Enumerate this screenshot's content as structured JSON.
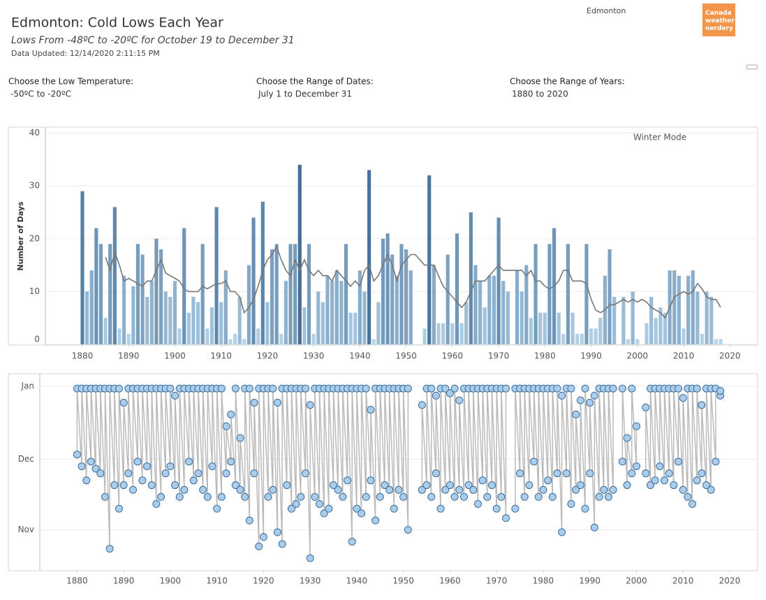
{
  "header": {
    "title": "Edmonton: Cold Lows Each Year",
    "subtitle": "Lows From -48ºC to -20ºC for October 19 to December 31",
    "updated": "Data Updated: 12/14/2020 2:11:15 PM",
    "location": "Edmonton",
    "logo": "Canada weather nerdery"
  },
  "filters": [
    {
      "label": "Choose the Low Temperature:",
      "value": "-50ºC to -20ºC"
    },
    {
      "label": "Choose the Range of Dates:",
      "value": "July 1 to December 31"
    },
    {
      "label": "Choose the Range of Years:",
      "value": "1880 to 2020"
    }
  ],
  "chart_data": [
    {
      "type": "bar",
      "annotation": "Winter Mode",
      "ylabel": "Number of Days",
      "x": [
        1880,
        1881,
        1882,
        1883,
        1884,
        1885,
        1886,
        1887,
        1888,
        1889,
        1890,
        1891,
        1892,
        1893,
        1894,
        1895,
        1896,
        1897,
        1898,
        1899,
        1900,
        1901,
        1902,
        1903,
        1904,
        1905,
        1906,
        1907,
        1908,
        1909,
        1910,
        1911,
        1912,
        1913,
        1914,
        1915,
        1916,
        1917,
        1918,
        1919,
        1920,
        1921,
        1922,
        1923,
        1924,
        1925,
        1926,
        1927,
        1928,
        1929,
        1930,
        1931,
        1932,
        1933,
        1934,
        1935,
        1936,
        1937,
        1938,
        1939,
        1940,
        1941,
        1942,
        1943,
        1944,
        1945,
        1946,
        1947,
        1948,
        1949,
        1950,
        1951,
        1952,
        1953,
        1954,
        1955,
        1956,
        1957,
        1958,
        1959,
        1960,
        1961,
        1962,
        1963,
        1964,
        1965,
        1966,
        1967,
        1968,
        1969,
        1970,
        1971,
        1972,
        1973,
        1974,
        1975,
        1976,
        1977,
        1978,
        1979,
        1980,
        1981,
        1982,
        1983,
        1984,
        1985,
        1986,
        1987,
        1988,
        1989,
        1990,
        1991,
        1992,
        1993,
        1994,
        1995,
        1996,
        1997,
        1998,
        1999,
        2000,
        2001,
        2002,
        2003,
        2004,
        2005,
        2006,
        2007,
        2008,
        2009,
        2010,
        2011,
        2012,
        2013,
        2014,
        2015,
        2016,
        2017,
        2018
      ],
      "values": [
        29,
        10,
        14,
        22,
        19,
        5,
        19,
        26,
        3,
        13,
        2,
        11,
        19,
        17,
        9,
        12,
        20,
        18,
        10,
        9,
        12,
        3,
        22,
        6,
        9,
        8,
        19,
        3,
        7,
        26,
        8,
        14,
        1,
        2,
        9,
        1,
        15,
        24,
        3,
        27,
        8,
        18,
        19,
        2,
        12,
        19,
        19,
        34,
        7,
        19,
        2,
        10,
        8,
        13,
        12,
        14,
        12,
        19,
        6,
        6,
        14,
        10,
        33,
        1,
        8,
        20,
        21,
        17,
        13,
        19,
        18,
        14,
        0,
        0,
        3,
        32,
        15,
        4,
        4,
        17,
        4,
        21,
        4,
        8,
        25,
        15,
        12,
        7,
        13,
        13,
        24,
        12,
        10,
        0,
        14,
        10,
        15,
        5,
        19,
        6,
        6,
        19,
        22,
        6,
        2,
        19,
        6,
        2,
        2,
        19,
        3,
        3,
        5,
        13,
        18,
        9,
        0,
        9,
        1,
        10,
        1,
        0,
        4,
        9,
        5,
        7,
        6,
        14,
        14,
        13,
        3,
        13,
        14,
        10,
        2,
        10,
        9,
        1,
        1
      ],
      "trend": [
        null,
        null,
        null,
        null,
        null,
        16.5,
        14,
        17.5,
        15,
        12,
        12.5,
        12,
        11.5,
        11,
        12,
        12,
        14,
        16,
        13.5,
        13,
        12.5,
        12,
        10.5,
        10,
        10,
        10,
        11,
        10.5,
        11,
        11.5,
        11.5,
        12,
        10,
        10,
        9,
        6,
        7,
        8.5,
        11,
        14,
        16,
        17,
        18.5,
        16,
        14,
        13,
        16,
        14,
        16,
        14,
        13,
        14,
        13,
        13,
        12,
        14,
        13,
        12,
        11,
        12,
        11,
        14,
        15,
        12,
        13,
        15,
        17,
        15,
        12,
        15,
        16,
        17,
        17,
        16,
        15,
        15,
        15,
        13,
        11,
        10,
        9,
        8,
        7,
        8,
        10,
        12,
        12,
        12,
        13,
        14,
        15,
        14,
        14,
        14,
        14,
        14,
        13,
        14,
        12,
        12,
        11,
        10.5,
        11,
        12,
        14,
        14,
        12,
        12,
        12,
        11.5,
        8.5,
        6.5,
        6,
        6.5,
        7.5,
        7.5,
        8,
        8.5,
        8,
        8.5,
        8,
        8.5,
        8,
        7,
        6.5,
        6,
        5,
        7,
        9,
        9.5,
        10,
        9.5,
        10,
        11.5,
        10.5,
        9,
        8.5,
        8.5,
        7
      ],
      "color_scale": [
        "#b9d7ec",
        "#2b5a87"
      ],
      "trend_color": "#777777",
      "xlim": [
        1872,
        2026
      ],
      "ylim": [
        0,
        41
      ],
      "xticks": [
        1880,
        1890,
        1900,
        1910,
        1920,
        1930,
        1940,
        1950,
        1960,
        1970,
        1980,
        1990,
        2000,
        2010,
        2020
      ],
      "yticks": [
        0,
        10,
        20,
        30,
        40
      ],
      "grid": true
    },
    {
      "type": "scatter",
      "x": [
        1880,
        1881,
        1882,
        1883,
        1884,
        1885,
        1886,
        1887,
        1888,
        1889,
        1890,
        1891,
        1892,
        1893,
        1894,
        1895,
        1896,
        1897,
        1898,
        1899,
        1900,
        1901,
        1902,
        1903,
        1904,
        1905,
        1906,
        1907,
        1908,
        1909,
        1910,
        1911,
        1912,
        1913,
        1914,
        1915,
        1916,
        1917,
        1918,
        1919,
        1920,
        1921,
        1922,
        1923,
        1924,
        1925,
        1926,
        1927,
        1928,
        1929,
        1930,
        1931,
        1932,
        1933,
        1934,
        1935,
        1936,
        1937,
        1938,
        1939,
        1940,
        1941,
        1942,
        1943,
        1944,
        1945,
        1946,
        1947,
        1948,
        1949,
        1950,
        1951,
        1952,
        1953,
        1954,
        1955,
        1956,
        1957,
        1958,
        1959,
        1960,
        1961,
        1962,
        1963,
        1964,
        1965,
        1966,
        1967,
        1968,
        1969,
        1970,
        1971,
        1972,
        1973,
        1974,
        1975,
        1976,
        1977,
        1978,
        1979,
        1980,
        1981,
        1982,
        1983,
        1984,
        1985,
        1986,
        1987,
        1988,
        1989,
        1990,
        1991,
        1992,
        1993,
        1994,
        1995,
        1996,
        1997,
        1998,
        1999,
        2000,
        2001,
        2002,
        2003,
        2004,
        2005,
        2006,
        2007,
        2008,
        2009,
        2010,
        2011,
        2012,
        2013,
        2014,
        2015,
        2016,
        2017,
        2018
      ],
      "first_day": [
        63,
        58,
        52,
        60,
        57,
        55,
        45,
        23,
        50,
        40,
        50,
        55,
        48,
        60,
        52,
        58,
        50,
        42,
        45,
        55,
        58,
        50,
        45,
        48,
        60,
        52,
        55,
        48,
        45,
        58,
        40,
        45,
        55,
        60,
        50,
        48,
        45,
        35,
        55,
        24,
        28,
        45,
        48,
        30,
        25,
        50,
        40,
        42,
        45,
        55,
        19,
        45,
        42,
        38,
        40,
        50,
        48,
        45,
        52,
        26,
        40,
        38,
        45,
        52,
        35,
        45,
        50,
        48,
        40,
        48,
        45,
        31,
        null,
        null,
        48,
        50,
        45,
        55,
        40,
        48,
        50,
        45,
        48,
        45,
        50,
        48,
        42,
        52,
        45,
        50,
        40,
        45,
        36,
        null,
        40,
        55,
        45,
        50,
        60,
        45,
        48,
        52,
        45,
        55,
        30,
        55,
        42,
        48,
        50,
        40,
        55,
        32,
        45,
        48,
        45,
        48,
        null,
        60,
        50,
        55,
        58,
        null,
        55,
        50,
        52,
        58,
        52,
        55,
        50,
        60,
        48,
        45,
        42,
        52,
        55,
        50,
        48,
        60,
        88
      ],
      "last_day": [
        91,
        91,
        91,
        91,
        91,
        91,
        91,
        91,
        91,
        91,
        85,
        91,
        91,
        91,
        91,
        91,
        91,
        91,
        91,
        91,
        91,
        88,
        91,
        91,
        91,
        91,
        91,
        91,
        91,
        91,
        91,
        91,
        75,
        80,
        91,
        70,
        91,
        91,
        85,
        91,
        91,
        91,
        91,
        85,
        91,
        91,
        91,
        91,
        91,
        91,
        84,
        91,
        91,
        91,
        91,
        91,
        91,
        91,
        91,
        91,
        91,
        91,
        91,
        82,
        91,
        91,
        91,
        91,
        91,
        91,
        91,
        91,
        null,
        null,
        84,
        91,
        91,
        88,
        91,
        91,
        89,
        91,
        86,
        91,
        91,
        91,
        91,
        91,
        91,
        91,
        91,
        91,
        91,
        null,
        91,
        91,
        91,
        91,
        91,
        91,
        91,
        91,
        91,
        91,
        88,
        91,
        91,
        80,
        86,
        91,
        85,
        88,
        91,
        91,
        91,
        91,
        null,
        91,
        70,
        91,
        75,
        null,
        83,
        91,
        91,
        91,
        91,
        91,
        91,
        91,
        87,
        91,
        91,
        91,
        84,
        91,
        91,
        91,
        90
      ],
      "color": "#a9cdea",
      "edge_color": "#3b6b99",
      "line_color": "#bbbbbb",
      "xlim": [
        1872,
        2026
      ],
      "ylim": [
        14,
        97
      ],
      "xticks": [
        1880,
        1890,
        1900,
        1910,
        1920,
        1930,
        1940,
        1950,
        1960,
        1970,
        1980,
        1990,
        2000,
        2010,
        2020
      ],
      "yticks": [
        {
          "value": 92,
          "label": "Jan"
        },
        {
          "value": 61,
          "label": "Dec"
        },
        {
          "value": 31,
          "label": "Nov"
        }
      ],
      "grid": true
    }
  ]
}
